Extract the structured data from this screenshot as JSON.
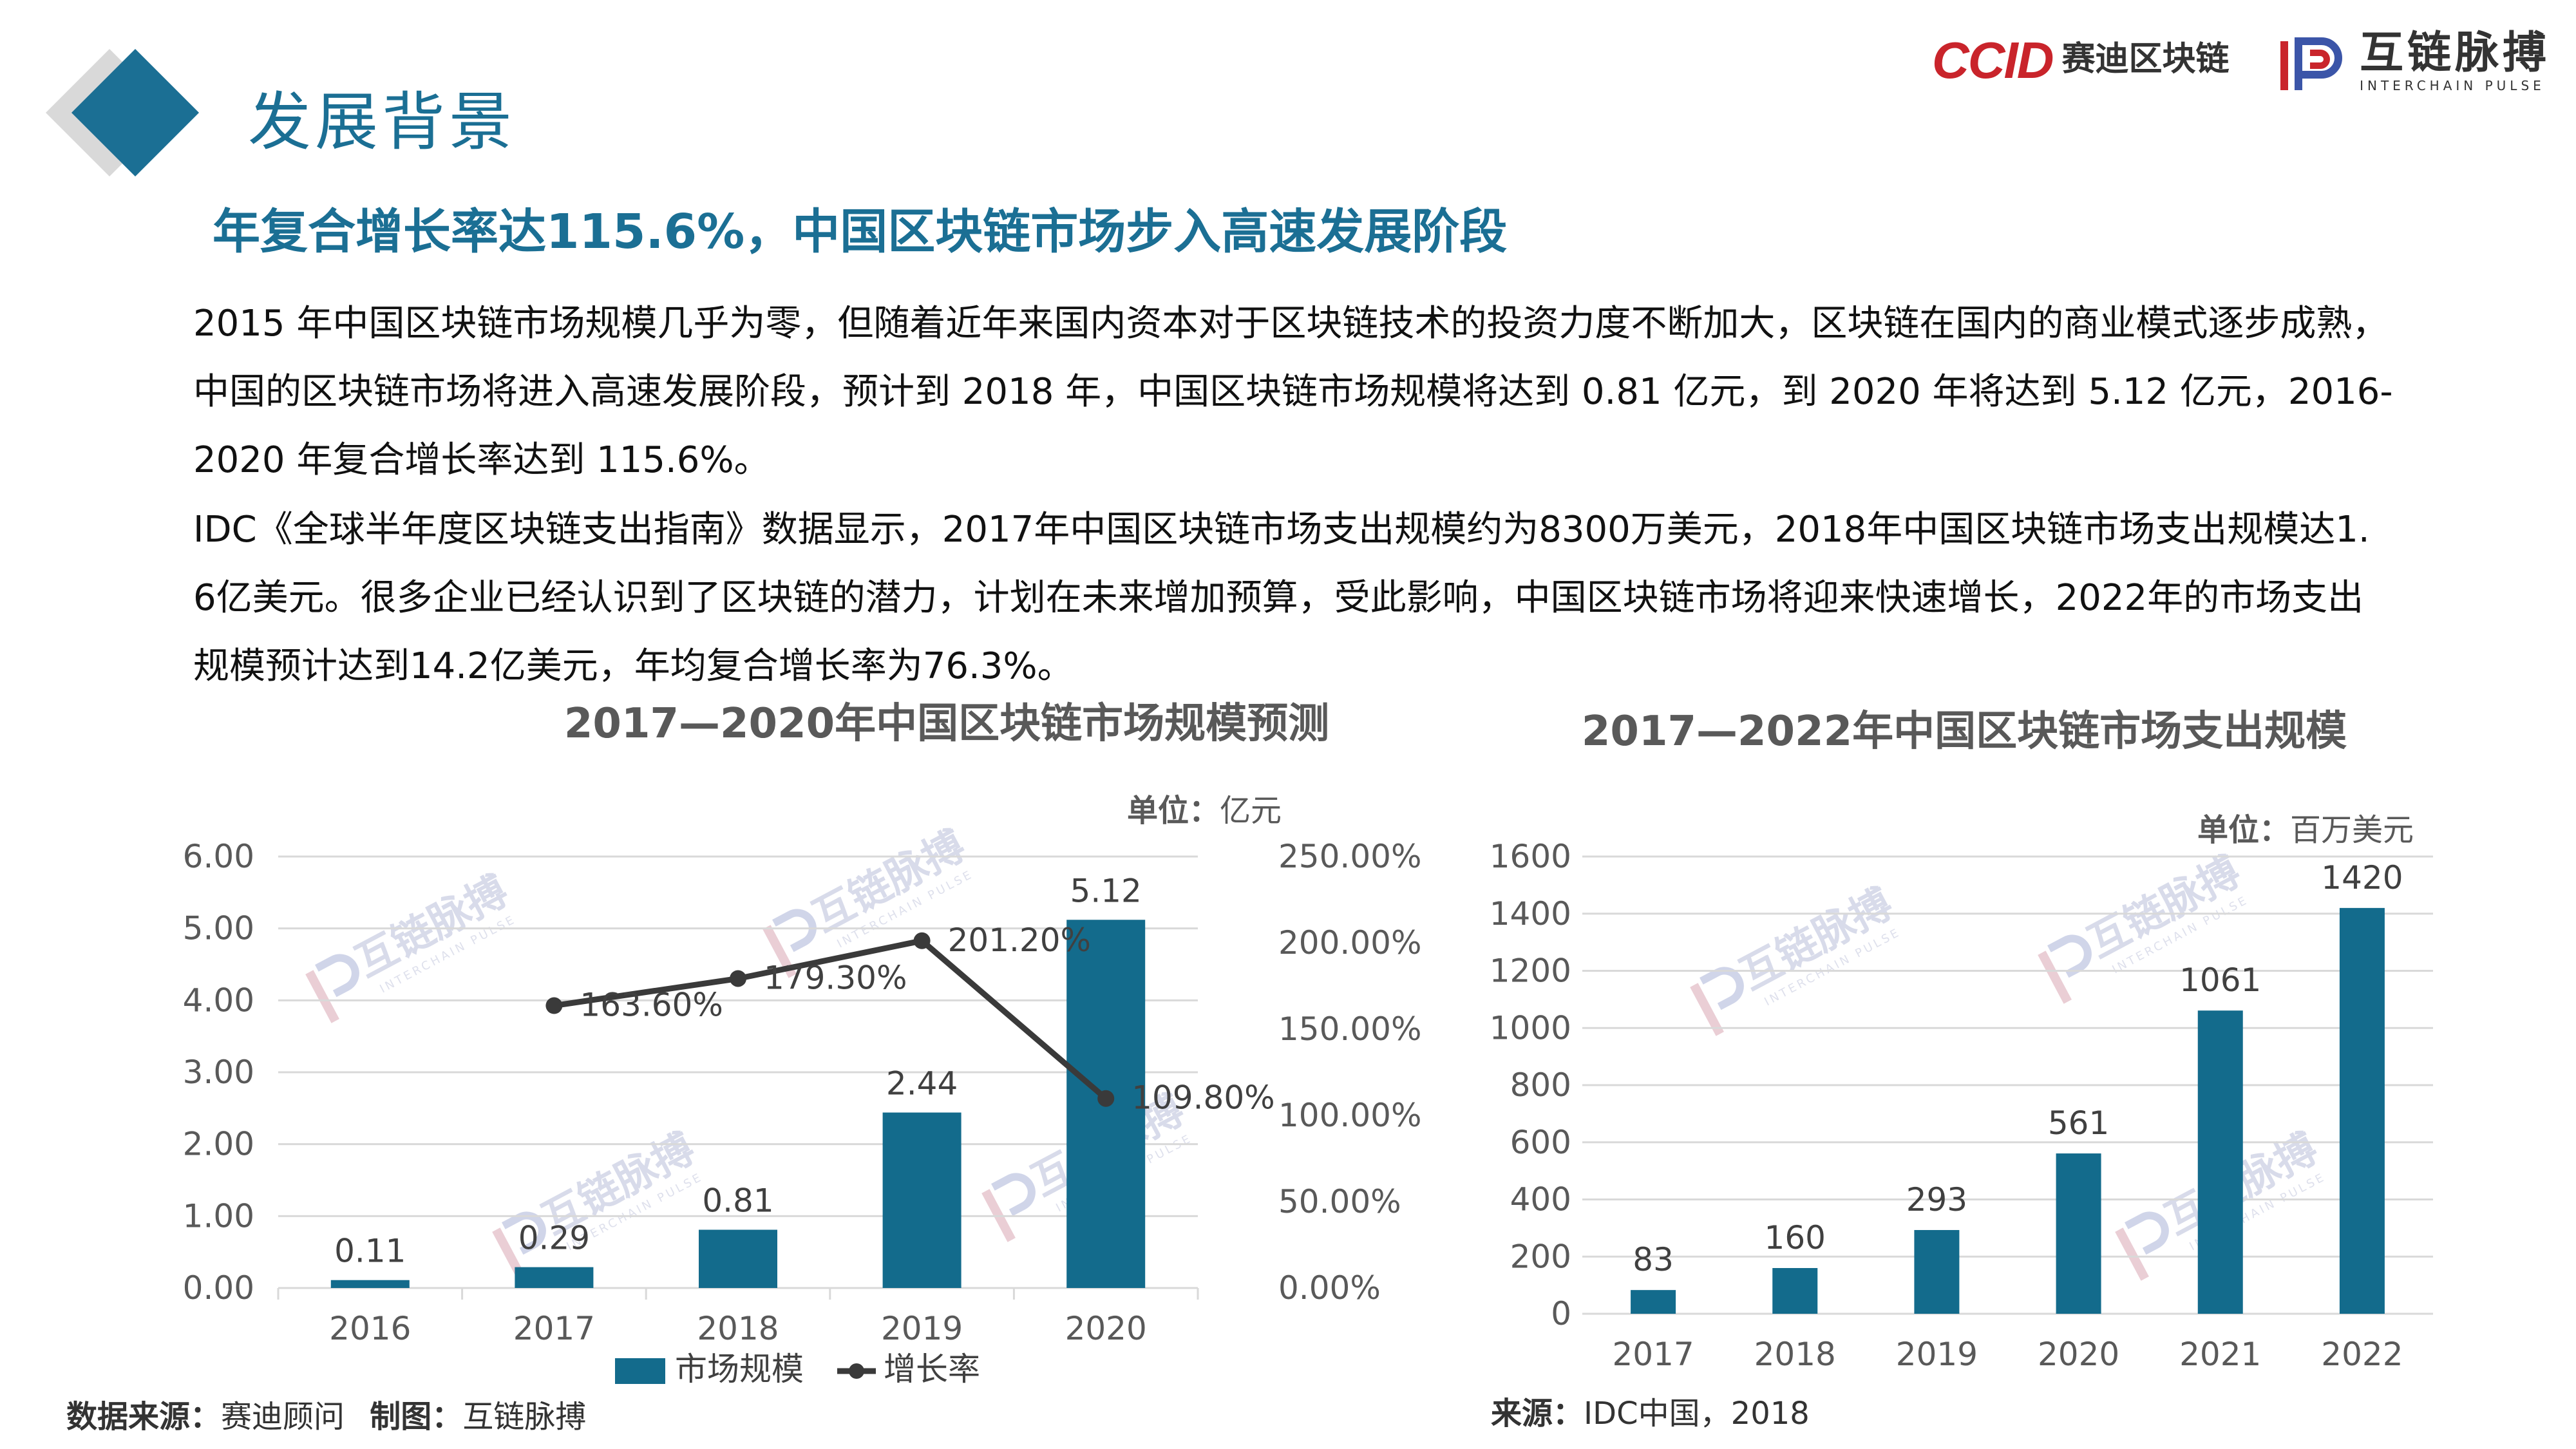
{
  "header": {
    "title": "发展背景",
    "ccid_mark": "CCID",
    "ccid_text": "赛迪区块链",
    "brand_cn": "互链脉搏",
    "brand_en": "INTERCHAIN PULSE"
  },
  "subtitle": "年复合增长率达115.6%，中国区块链市场步入高速发展阶段",
  "paragraphs": [
    "2015 年中国区块链市场规模几乎为零，但随着近年来国内资本对于区块链技术的投资力度不断加大，区块链在国内的商业模式逐步成熟，中国的区块链市场将进入高速发展阶段，预计到 2018 年，中国区块链市场规模将达到 0.81 亿元，到 2020 年将达到 5.12 亿元，2016-2020 年复合增长率达到 115.6%。",
    "IDC《全球半年度区块链支出指南》数据显示，2017年中国区块链市场支出规模约为8300万美元，2018年中国区块链市场支出规模达1. 6亿美元。很多企业已经认识到了区块链的潜力，计划在未来增加预算，受此影响，中国区块链市场将迎来快速增长，2022年的市场支出规模预计达到14.2亿美元，年均复合增长率为76.3%。"
  ],
  "watermark": {
    "cn": "互链脉搏",
    "en": "INTERCHAIN PULSE"
  },
  "source_left": {
    "label1": "数据来源：",
    "value1": "赛迪顾问",
    "label2": "制图：",
    "value2": "互链脉搏"
  },
  "source_right": {
    "label": "来源：",
    "value": "IDC中国，2018"
  },
  "colors": {
    "accent": "#1b6f94",
    "bar": "#136b8c",
    "line": "#3a3a3a",
    "ccid_red": "#c9242b",
    "grid": "#d9d9d9"
  },
  "chart_data": [
    {
      "type": "bar+line",
      "title": "2017—2020年中国区块链市场规模预测",
      "unit_label": "单位：亿元",
      "categories": [
        "2016",
        "2017",
        "2018",
        "2019",
        "2020"
      ],
      "series": [
        {
          "name": "市场规模",
          "type": "bar",
          "axis": "left",
          "values": [
            0.11,
            0.29,
            0.81,
            2.44,
            5.12
          ],
          "labels": [
            "0.11",
            "0.29",
            "0.81",
            "2.44",
            "5.12"
          ]
        },
        {
          "name": "增长率",
          "type": "line",
          "axis": "right",
          "values": [
            null,
            163.6,
            179.3,
            201.2,
            109.8
          ],
          "labels": [
            "",
            "163.60%",
            "179.30%",
            "201.20%",
            "109.80%"
          ]
        }
      ],
      "y_left": {
        "min": 0,
        "max": 6,
        "ticks": [
          "0.00",
          "1.00",
          "2.00",
          "3.00",
          "4.00",
          "5.00",
          "6.00"
        ]
      },
      "y_right": {
        "min": 0,
        "max": 250,
        "ticks": [
          "0.00%",
          "50.00%",
          "100.00%",
          "150.00%",
          "200.00%",
          "250.00%"
        ]
      },
      "grid": true,
      "legend": "bottom"
    },
    {
      "type": "bar",
      "title": "2017—2022年中国区块链市场支出规模",
      "unit_label": "单位：百万美元",
      "categories": [
        "2017",
        "2018",
        "2019",
        "2020",
        "2021",
        "2022"
      ],
      "values": [
        83,
        160,
        293,
        561,
        1061,
        1420
      ],
      "labels": [
        "83",
        "160",
        "293",
        "561",
        "1061",
        "1420"
      ],
      "y": {
        "min": 0,
        "max": 1600,
        "ticks": [
          "0",
          "200",
          "400",
          "600",
          "800",
          "1000",
          "1200",
          "1400",
          "1600"
        ]
      },
      "grid": true
    }
  ]
}
